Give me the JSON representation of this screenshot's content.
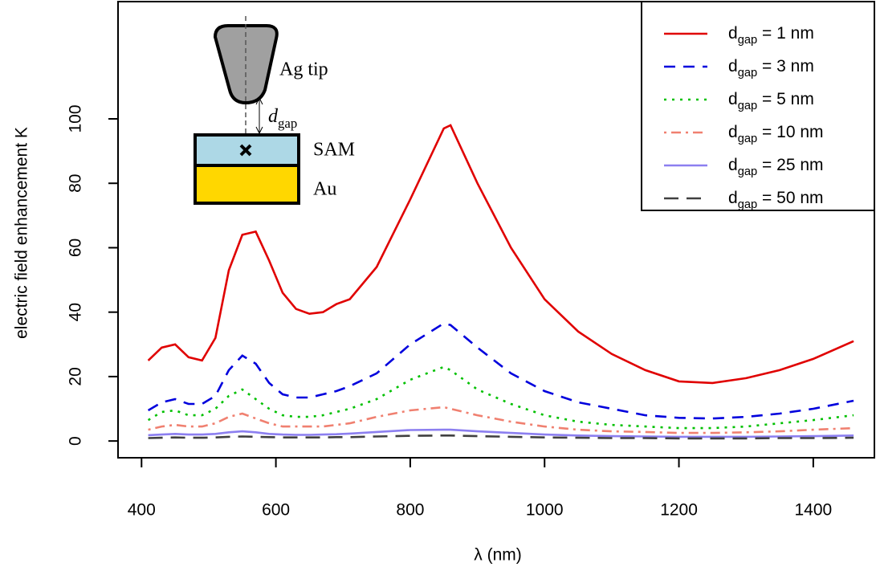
{
  "chart_data": {
    "type": "line",
    "xlabel": "λ (nm)",
    "ylabel": "electric field enhancement K",
    "x": [
      410,
      430,
      450,
      470,
      490,
      510,
      530,
      550,
      570,
      590,
      610,
      630,
      650,
      670,
      690,
      710,
      750,
      800,
      850,
      860,
      900,
      950,
      1000,
      1050,
      1100,
      1150,
      1200,
      1250,
      1300,
      1350,
      1400,
      1460
    ],
    "series": [
      {
        "name": "dgap = 1 nm",
        "color": "#e00000",
        "linestyle": "solid",
        "values": [
          25,
          29,
          30,
          26,
          25,
          32,
          53,
          64,
          65,
          56,
          46,
          41,
          39.5,
          40,
          42.5,
          44,
          54,
          75,
          97,
          98,
          80,
          60,
          44,
          34,
          27,
          22,
          18.5,
          18,
          19.5,
          22,
          25.5,
          31
        ]
      },
      {
        "name": "dgap = 3 nm",
        "color": "#0000dd",
        "linestyle": "dashed",
        "values": [
          9.5,
          12,
          13,
          11.5,
          11.5,
          14,
          22,
          26.5,
          24,
          18,
          14.5,
          13.5,
          13.5,
          14.5,
          15.5,
          17,
          21,
          30,
          36.5,
          36,
          29,
          21,
          15.5,
          12,
          10,
          8,
          7.2,
          7,
          7.5,
          8.5,
          10,
          12.5
        ]
      },
      {
        "name": "dgap = 5 nm",
        "color": "#00c000",
        "linestyle": "dotted",
        "values": [
          6.5,
          9,
          9.5,
          8,
          8,
          10,
          14,
          16,
          13,
          10,
          8,
          7.5,
          7.5,
          8,
          9,
          10,
          13,
          19,
          23,
          22,
          16,
          11.5,
          8,
          6,
          5,
          4.5,
          4,
          4,
          4.5,
          5.5,
          6.5,
          8
        ]
      },
      {
        "name": "dgap = 10 nm",
        "color": "#f08070",
        "linestyle": "dotdash",
        "values": [
          3.5,
          4.5,
          5,
          4.5,
          4.5,
          5.5,
          7.5,
          8.5,
          7,
          5.5,
          4.5,
          4.5,
          4.5,
          4.5,
          5,
          5.5,
          7.5,
          9.5,
          10.5,
          10,
          8,
          6,
          4.5,
          3.5,
          3,
          2.8,
          2.5,
          2.5,
          2.7,
          3,
          3.5,
          4
        ]
      },
      {
        "name": "dgap = 25 nm",
        "color": "#8c7ff0",
        "linestyle": "solid",
        "values": [
          1.8,
          2,
          2.2,
          2,
          2,
          2.2,
          2.7,
          3,
          2.7,
          2.2,
          2,
          1.9,
          1.9,
          2,
          2.1,
          2.3,
          2.8,
          3.4,
          3.5,
          3.5,
          3,
          2.5,
          2,
          1.7,
          1.5,
          1.4,
          1.3,
          1.3,
          1.3,
          1.4,
          1.5,
          1.7
        ]
      },
      {
        "name": "dgap = 50 nm",
        "color": "#404040",
        "linestyle": "longdash",
        "values": [
          0.9,
          1,
          1.1,
          1,
          1,
          1.1,
          1.3,
          1.4,
          1.3,
          1.2,
          1.1,
          1.1,
          1.1,
          1.1,
          1.2,
          1.2,
          1.4,
          1.6,
          1.7,
          1.7,
          1.5,
          1.3,
          1.1,
          1,
          0.9,
          0.9,
          0.8,
          0.8,
          0.8,
          0.9,
          0.9,
          1
        ]
      }
    ],
    "xlim": [
      365,
      1491
    ],
    "ylim": [
      -5.2,
      136.4
    ],
    "xticks": [
      400,
      600,
      800,
      1000,
      1200,
      1400
    ],
    "yticks": [
      0,
      20,
      40,
      60,
      80,
      100
    ],
    "legend": "top-right",
    "annotations": [
      "Ag tip",
      "dgap",
      "SAM",
      "Au"
    ]
  }
}
